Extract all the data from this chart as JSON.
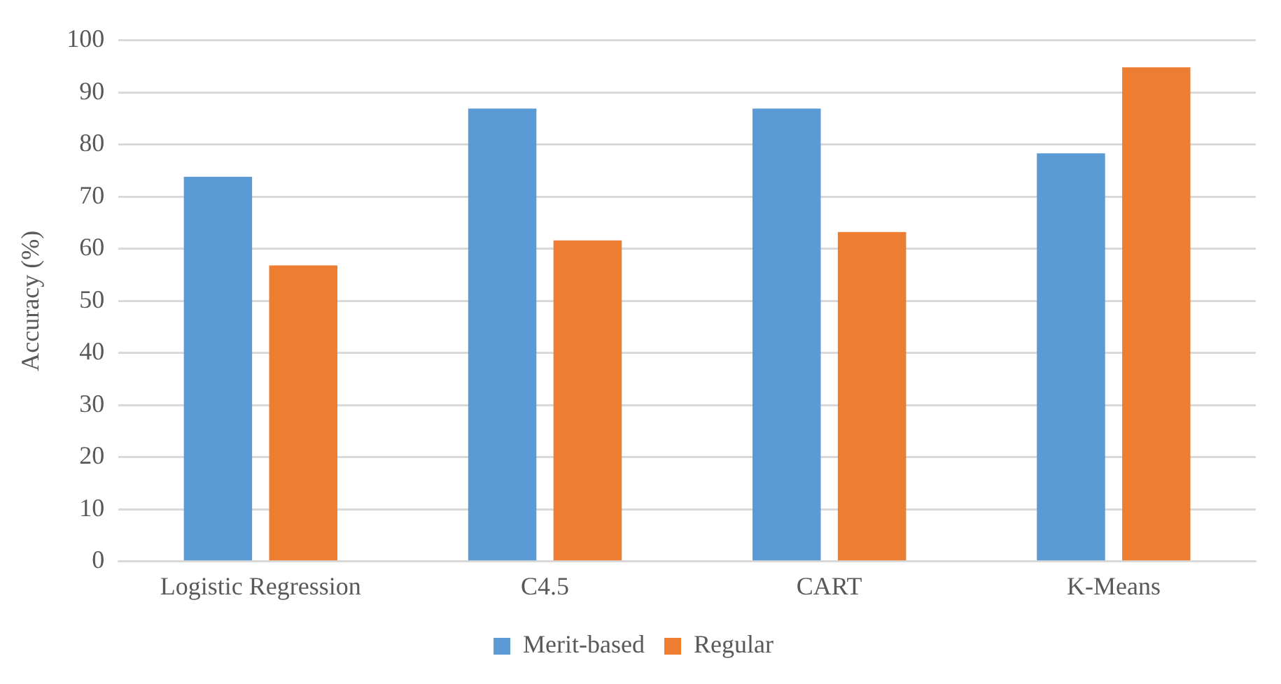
{
  "chart_data": {
    "type": "bar",
    "ylabel": "Accuracy (%)",
    "categories": [
      "Logistic Regression",
      "C4.5",
      "CART",
      "K-Means"
    ],
    "series": [
      {
        "name": "Merit-based",
        "color": "#5b9bd5",
        "values": [
          73.8,
          86.9,
          86.9,
          78.3
        ]
      },
      {
        "name": "Regular",
        "color": "#ed7d31",
        "values": [
          56.8,
          61.6,
          63.2,
          94.8
        ]
      }
    ],
    "ylim": [
      0,
      100
    ],
    "yticks": [
      0,
      10,
      20,
      30,
      40,
      50,
      60,
      70,
      80,
      90,
      100
    ],
    "grid": "y",
    "legend": "bottom"
  }
}
